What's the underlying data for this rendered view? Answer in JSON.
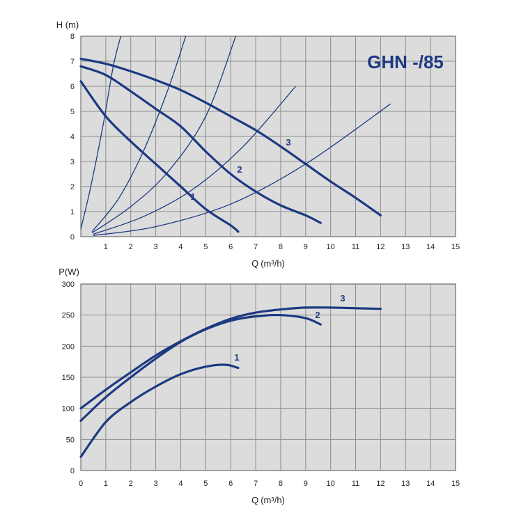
{
  "colors": {
    "plot_bg": "#dcdcdc",
    "grid": "#8c8c8c",
    "curve": "#1c3a82"
  },
  "chart_data": [
    {
      "type": "line",
      "title": "GHN -/85",
      "ylabel": "H (m)",
      "xlabel": "Q",
      "xlabel_unit": "(m³/h)",
      "xlim": [
        0,
        15
      ],
      "ylim": [
        0,
        8
      ],
      "xticks": [
        1,
        2,
        3,
        4,
        5,
        6,
        7,
        8,
        9,
        10,
        11,
        12,
        13,
        14,
        15
      ],
      "yticks": [
        0,
        1,
        2,
        3,
        4,
        5,
        6,
        7,
        8
      ],
      "grid": true,
      "series": [
        {
          "name": "1",
          "x": [
            0,
            1,
            2,
            3,
            4,
            5,
            6,
            6.3
          ],
          "y": [
            6.2,
            4.8,
            3.8,
            2.9,
            2.0,
            1.1,
            0.45,
            0.2
          ]
        },
        {
          "name": "2",
          "x": [
            0,
            1,
            2,
            3,
            4,
            5,
            6,
            7,
            8,
            9,
            9.6
          ],
          "y": [
            6.8,
            6.45,
            5.8,
            5.1,
            4.4,
            3.4,
            2.5,
            1.8,
            1.25,
            0.85,
            0.55
          ]
        },
        {
          "name": "3",
          "x": [
            0,
            1,
            2,
            3,
            4,
            5,
            6,
            7,
            8,
            9,
            10,
            11,
            12
          ],
          "y": [
            7.1,
            6.9,
            6.6,
            6.25,
            5.85,
            5.35,
            4.8,
            4.25,
            3.6,
            2.9,
            2.2,
            1.55,
            0.85
          ]
        }
      ],
      "system_curves": [
        {
          "x": [
            0,
            0.4,
            0.9,
            1.3,
            1.6
          ],
          "y": [
            0.3,
            2.0,
            4.5,
            6.8,
            8.0
          ]
        },
        {
          "x": [
            0.45,
            1.5,
            2.5,
            3.5,
            4.2
          ],
          "y": [
            0.2,
            1.5,
            3.4,
            5.9,
            8.0
          ]
        },
        {
          "x": [
            0.45,
            2,
            3.5,
            5,
            6.2
          ],
          "y": [
            0.15,
            1.2,
            2.6,
            4.8,
            8.0
          ]
        },
        {
          "x": [
            0.5,
            2.5,
            4.5,
            6.5,
            8.6
          ],
          "y": [
            0.1,
            0.8,
            1.9,
            3.6,
            6.0
          ]
        },
        {
          "x": [
            0.5,
            3,
            6,
            9,
            12.4
          ],
          "y": [
            0.05,
            0.4,
            1.3,
            2.9,
            5.3
          ]
        }
      ]
    },
    {
      "type": "line",
      "ylabel": "P(W)",
      "xlabel": "Q",
      "xlabel_unit": "(m³/h)",
      "xlim": [
        0,
        15
      ],
      "ylim": [
        0,
        300
      ],
      "xticks": [
        0,
        1,
        2,
        3,
        4,
        5,
        6,
        7,
        8,
        9,
        10,
        11,
        12,
        13,
        14,
        15
      ],
      "yticks": [
        0,
        50,
        100,
        150,
        200,
        250,
        300
      ],
      "grid": true,
      "series": [
        {
          "name": "1",
          "x": [
            0,
            1,
            2,
            3,
            4,
            5,
            5.8,
            6.3
          ],
          "y": [
            22,
            78,
            110,
            135,
            155,
            167,
            170,
            165
          ]
        },
        {
          "name": "2",
          "x": [
            0,
            1,
            2,
            3,
            4,
            5,
            6,
            7,
            8,
            9,
            9.6
          ],
          "y": [
            80,
            118,
            150,
            180,
            207,
            227,
            241,
            248,
            250,
            245,
            235
          ]
        },
        {
          "name": "3",
          "x": [
            0,
            1,
            2,
            3,
            4,
            5,
            6,
            7,
            8,
            9,
            10,
            11,
            12
          ],
          "y": [
            100,
            130,
            158,
            185,
            208,
            228,
            244,
            254,
            259,
            262,
            262,
            261,
            260
          ]
        }
      ]
    }
  ]
}
